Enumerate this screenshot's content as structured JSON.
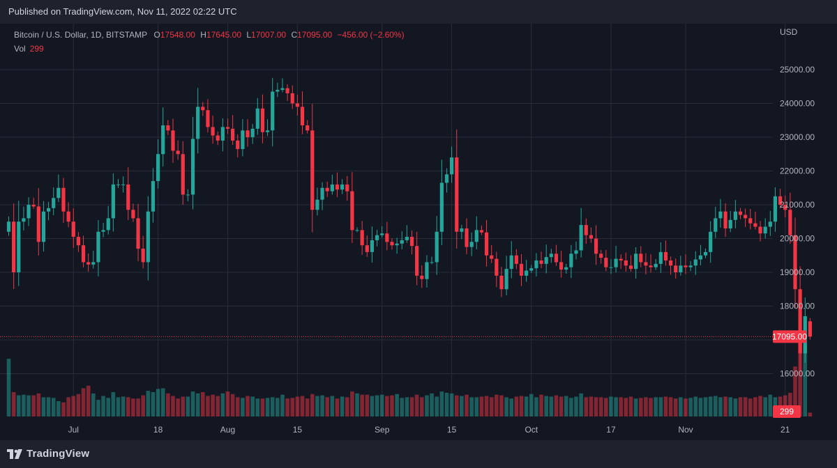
{
  "header": {
    "published_text": "Published on TradingView.com, Nov 11, 2022 02:22 UTC"
  },
  "legend": {
    "symbol": "Bitcoin / U.S. Dollar, 1D, BITSTAMP",
    "o_label": "O",
    "o_value": "17548.00",
    "h_label": "H",
    "h_value": "17645.00",
    "l_label": "L",
    "l_value": "17007.00",
    "c_label": "C",
    "c_value": "17095.00",
    "change": "−456.00 (−2.60%)",
    "vol_label": "Vol",
    "vol_value": "299"
  },
  "footer": {
    "brand": "TradingView"
  },
  "colors": {
    "background": "#1e222d",
    "plot_background": "#131722",
    "up": "#26a69a",
    "down": "#f23645",
    "grid": "#2a2e39",
    "text": "#b2b5be"
  },
  "chart_data": {
    "type": "candlestick",
    "currency_label": "USD",
    "y_ticks": [
      16000,
      17000,
      18000,
      19000,
      20000,
      21000,
      22000,
      23000,
      24000,
      25000
    ],
    "y_tick_labels": [
      "16000.00",
      "",
      "18000.00",
      "19000.00",
      "20000.00",
      "21000.00",
      "22000.00",
      "23000.00",
      "24000.00",
      "25000.00"
    ],
    "ylim": [
      15700,
      26000
    ],
    "x_ticks": [
      {
        "label": "Jul",
        "date": "2022-07-01"
      },
      {
        "label": "18",
        "date": "2022-07-18"
      },
      {
        "label": "Aug",
        "date": "2022-08-01"
      },
      {
        "label": "15",
        "date": "2022-08-15"
      },
      {
        "label": "Sep",
        "date": "2022-09-01"
      },
      {
        "label": "15",
        "date": "2022-09-15"
      },
      {
        "label": "Oct",
        "date": "2022-10-01"
      },
      {
        "label": "17",
        "date": "2022-10-17"
      },
      {
        "label": "Nov",
        "date": "2022-11-01"
      },
      {
        "label": "21",
        "date": "2022-11-21"
      }
    ],
    "first_date": "2022-06-18",
    "last_price": {
      "value": 17095,
      "label": "17095.00"
    },
    "last_volume": {
      "value": 299,
      "label": "299"
    },
    "grid": true,
    "close": [
      20500,
      19000,
      20500,
      20600,
      21000,
      20950,
      19900,
      20800,
      20900,
      21200,
      21500,
      20800,
      20500,
      20050,
      19800,
      19300,
      19230,
      19300,
      20200,
      20250,
      20600,
      21600,
      21600,
      21600,
      20850,
      20600,
      19700,
      19300,
      20800,
      21700,
      22500,
      23350,
      23200,
      22600,
      22500,
      21300,
      21300,
      22950,
      23900,
      23800,
      23300,
      23050,
      22900,
      23300,
      23250,
      22900,
      22650,
      23200,
      23000,
      23250,
      23850,
      23150,
      23200,
      24350,
      24400,
      24450,
      24300,
      24000,
      23900,
      23350,
      23200,
      20850,
      21150,
      21500,
      21400,
      21600,
      21450,
      21600,
      21400,
      20250,
      20250,
      19800,
      19600,
      19950,
      20100,
      20150,
      19900,
      19800,
      19850,
      19950,
      20050,
      19780,
      18900,
      18800,
      19300,
      19300,
      20200,
      21650,
      21900,
      22400,
      20200,
      20300,
      19750,
      19900,
      20250,
      20180,
      19500,
      19400,
      18900,
      18500,
      19100,
      19500,
      19250,
      18900,
      19050,
      19120,
      19350,
      19250,
      19450,
      19550,
      19300,
      19080,
      19150,
      19550,
      19650,
      20400,
      20100,
      20000,
      19550,
      19430,
      19150,
      19150,
      19400,
      19350,
      19200,
      19100,
      19550,
      19300,
      19200,
      19150,
      19250,
      19600,
      19350,
      19200,
      19000,
      19200,
      19150,
      19200,
      19380,
      19500,
      19600,
      20200,
      20600,
      20800,
      20300,
      20550,
      20800,
      20700,
      20600,
      20450,
      20350,
      20150,
      20350,
      20500,
      21250,
      21000,
      20850,
      20100,
      18500,
      16600,
      17700,
      17095
    ],
    "volume": [
      4500,
      1900,
      1650,
      1700,
      1650,
      1650,
      1800,
      1500,
      1500,
      1450,
      1200,
      1100,
      1500,
      1600,
      1750,
      2200,
      2400,
      1800,
      1300,
      1600,
      1450,
      1900,
      1500,
      1550,
      1500,
      1400,
      1400,
      1650,
      2000,
      1900,
      2150,
      2200,
      1800,
      1600,
      1400,
      1550,
      1550,
      1950,
      1800,
      1900,
      1600,
      1700,
      1600,
      1800,
      1950,
      1750,
      1500,
      1450,
      1600,
      1550,
      1400,
      1400,
      1450,
      1500,
      1450,
      1700,
      1400,
      1450,
      1550,
      1600,
      1400,
      1750,
      1600,
      1650,
      1500,
      1600,
      1400,
      1550,
      1500,
      1950,
      1800,
      1700,
      1700,
      1600,
      1650,
      1700,
      1600,
      1650,
      1750,
      1450,
      1500,
      1500,
      1700,
      1500,
      1650,
      1800,
      1550,
      1950,
      1850,
      1800,
      1650,
      1600,
      1700,
      1500,
      1500,
      1550,
      1600,
      1500,
      1700,
      1650,
      1500,
      1400,
      1550,
      1600,
      1550,
      1750,
      1500,
      1700,
      1600,
      1550,
      1650,
      1550,
      1600,
      1450,
      1550,
      1800,
      1500,
      1550,
      1500,
      1500,
      1450,
      1550,
      1500,
      1500,
      1450,
      1550,
      1400,
      1450,
      1500,
      1450,
      1500,
      1500,
      1550,
      1500,
      1400,
      1500,
      1400,
      1450,
      1550,
      1450,
      1500,
      1550,
      1600,
      1500,
      1550,
      1500,
      1400,
      1500,
      1500,
      1400,
      1500,
      1600,
      1500,
      1700,
      1500,
      1550,
      1650,
      1850,
      3900,
      5800,
      5600,
      299
    ]
  }
}
